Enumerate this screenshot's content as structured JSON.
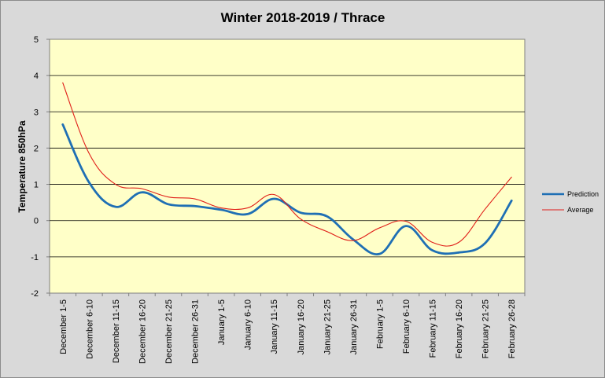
{
  "chart_data": {
    "type": "line",
    "title": "Winter 2018-2019 / Thrace",
    "xlabel": "",
    "ylabel": "Temperature 850hPa",
    "ylim": [
      -2,
      5
    ],
    "yticks": [
      -2,
      -1,
      0,
      1,
      2,
      3,
      4,
      5
    ],
    "grid": true,
    "legend_position": "right",
    "background_color": "#ffffc8",
    "categories": [
      "December 1-5",
      "December 6-10",
      "December 11-15",
      "December 16-20",
      "December 21-25",
      "December 26-31",
      "January 1-5",
      "January 6-10",
      "January 11-15",
      "January 16-20",
      "January 21-25",
      "January 26-31",
      "February 1-5",
      "February 6-10",
      "February 11-15",
      "February 16-20",
      "February 21-25",
      "February 26-28"
    ],
    "series": [
      {
        "name": "Prediction",
        "color": "#1f6fb4",
        "values": [
          2.65,
          1.05,
          0.38,
          0.78,
          0.45,
          0.4,
          0.3,
          0.18,
          0.6,
          0.22,
          0.12,
          -0.52,
          -0.92,
          -0.15,
          -0.82,
          -0.88,
          -0.62,
          0.55
        ]
      },
      {
        "name": "Average",
        "color": "#e0201a",
        "values": [
          3.8,
          1.85,
          1.0,
          0.88,
          0.65,
          0.6,
          0.35,
          0.35,
          0.72,
          0.05,
          -0.3,
          -0.55,
          -0.2,
          -0.02,
          -0.6,
          -0.6,
          0.32,
          1.2
        ]
      }
    ]
  }
}
